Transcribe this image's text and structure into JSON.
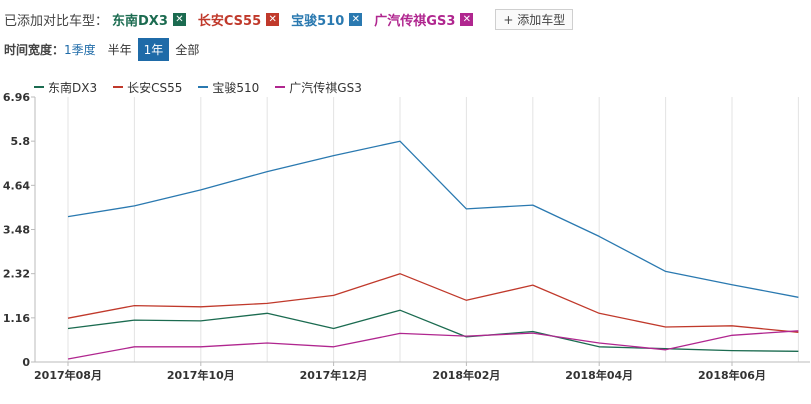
{
  "header": {
    "added_label": "已添加对比车型：",
    "models": [
      {
        "name": "东南DX3",
        "color": "#1b6b50",
        "remove_icon": "close-icon"
      },
      {
        "name": "长安CS55",
        "color": "#c0392b",
        "remove_icon": "close-icon"
      },
      {
        "name": "宝骏510",
        "color": "#2a79b0",
        "remove_icon": "close-icon"
      },
      {
        "name": "广汽传祺GS3",
        "color": "#b0268f",
        "remove_icon": "close-icon"
      }
    ],
    "add_button": "+ 添加车型"
  },
  "time_range": {
    "label": "时间宽度：",
    "options": [
      "1季度",
      "半年",
      "1年",
      "全部"
    ],
    "selected": "1年"
  },
  "chart_data": {
    "type": "line",
    "x": [
      "2017年08月",
      "2017年09月",
      "2017年10月",
      "2017年11月",
      "2017年12月",
      "2018年01月",
      "2018年02月",
      "2018年03月",
      "2018年04月",
      "2018年05月",
      "2018年06月",
      "2018年07月"
    ],
    "x_tick_labels": [
      "2017年08月",
      "2017年10月",
      "2017年12月",
      "2018年02月",
      "2018年04月",
      "2018年06月"
    ],
    "y_ticks": [
      "0",
      "1.16",
      "2.32",
      "3.48",
      "4.64",
      "5.8",
      "6.96"
    ],
    "ylim": [
      0,
      6.96
    ],
    "grid": "vertical",
    "legend_position": "top-left",
    "series": [
      {
        "name": "东南DX3",
        "color": "#1b6b50",
        "values": [
          0.88,
          1.1,
          1.08,
          1.28,
          0.88,
          1.36,
          0.66,
          0.8,
          0.4,
          0.35,
          0.3,
          0.28
        ]
      },
      {
        "name": "长安CS55",
        "color": "#c0392b",
        "values": [
          1.15,
          1.48,
          1.45,
          1.54,
          1.75,
          2.32,
          1.62,
          2.02,
          1.28,
          0.92,
          0.95,
          0.78
        ]
      },
      {
        "name": "宝骏510",
        "color": "#2a79b0",
        "values": [
          3.82,
          4.1,
          4.52,
          5.0,
          5.42,
          5.8,
          4.02,
          4.12,
          3.3,
          2.38,
          2.03,
          1.7
        ]
      },
      {
        "name": "广汽传祺GS3",
        "color": "#b0268f",
        "values": [
          0.08,
          0.4,
          0.4,
          0.5,
          0.4,
          0.75,
          0.68,
          0.76,
          0.5,
          0.32,
          0.7,
          0.82
        ]
      }
    ]
  }
}
